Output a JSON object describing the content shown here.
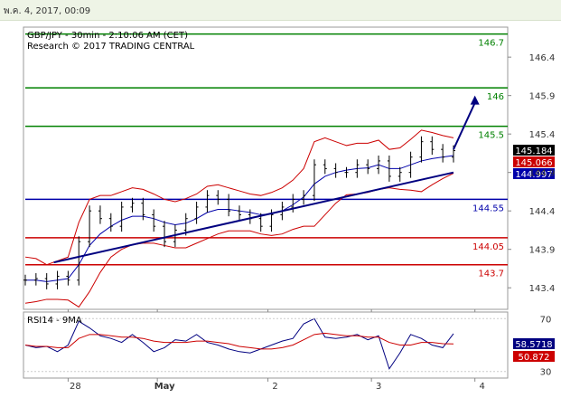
{
  "header": {
    "datetime": "พ.ค. 4, 2017, 00:09"
  },
  "chart_data": [
    {
      "type": "line",
      "title": "GBP/JPY - 30min - 2:10:06 AM (CET)",
      "subtitle": "Research © 2017 TRADING CENTRAL",
      "x_tick_labels": [
        "28",
        "May",
        "2",
        "3",
        "4"
      ],
      "y_tick_labels": [
        "146.4",
        "145.9",
        "145.4",
        "144.9",
        "144.4",
        "143.9",
        "143.4"
      ],
      "ylim": [
        143.12,
        146.79
      ],
      "levels": [
        {
          "value": 146.7,
          "label": "146.7",
          "color": "#008000"
        },
        {
          "value": 146.0,
          "label": "146",
          "color": "#008000"
        },
        {
          "value": 145.5,
          "label": "145.5",
          "color": "#008000"
        },
        {
          "value": 144.55,
          "label": "144.55",
          "color": "#0000aa"
        },
        {
          "value": 144.05,
          "label": "144.05",
          "color": "#cc0000"
        },
        {
          "value": 143.7,
          "label": "143.7",
          "color": "#cc0000"
        }
      ],
      "price_tags": [
        {
          "value": 145.184,
          "label": "145.184",
          "bg": "#000000",
          "fg": "#ffffff"
        },
        {
          "value": 145.066,
          "label": "145.066",
          "bg": "#cc0000",
          "fg": "#ffffff"
        },
        {
          "value": 144.997,
          "label": "144.997",
          "bg": "#0000aa",
          "fg": "#ffffff"
        }
      ],
      "price_series": {
        "name": "GBP/JPY",
        "x": [
          0,
          3,
          6,
          9,
          12,
          15,
          18,
          21,
          24,
          27,
          30,
          33,
          36,
          39,
          42,
          45,
          48,
          51,
          54,
          57,
          60,
          63,
          66,
          69,
          72,
          75,
          78,
          81,
          84,
          87,
          90,
          93,
          96,
          99,
          102,
          105,
          108,
          111,
          114,
          117,
          120
        ],
        "close": [
          143.5,
          143.52,
          143.45,
          143.55,
          143.5,
          144.0,
          144.4,
          144.3,
          144.2,
          144.45,
          144.5,
          144.35,
          144.2,
          144.0,
          144.15,
          144.3,
          144.45,
          144.6,
          144.55,
          144.4,
          144.35,
          144.3,
          144.2,
          144.35,
          144.45,
          144.55,
          144.6,
          145.0,
          144.95,
          144.9,
          144.9,
          145.0,
          144.95,
          145.05,
          144.85,
          144.9,
          145.1,
          145.3,
          145.2,
          145.1,
          145.184
        ]
      },
      "bollinger": {
        "upper": [
          143.8,
          143.78,
          143.7,
          143.75,
          143.8,
          144.25,
          144.55,
          144.6,
          144.6,
          144.65,
          144.7,
          144.68,
          144.62,
          144.55,
          144.52,
          144.56,
          144.62,
          144.72,
          144.74,
          144.7,
          144.66,
          144.62,
          144.6,
          144.64,
          144.7,
          144.8,
          144.95,
          145.3,
          145.35,
          145.3,
          145.25,
          145.28,
          145.28,
          145.32,
          145.2,
          145.22,
          145.33,
          145.45,
          145.42,
          145.38,
          145.35
        ],
        "middle": [
          143.5,
          143.5,
          143.48,
          143.5,
          143.52,
          143.7,
          143.95,
          144.1,
          144.2,
          144.28,
          144.33,
          144.33,
          144.3,
          144.25,
          144.22,
          144.24,
          144.3,
          144.38,
          144.42,
          144.42,
          144.4,
          144.38,
          144.35,
          144.36,
          144.4,
          144.48,
          144.58,
          144.75,
          144.85,
          144.9,
          144.93,
          144.95,
          144.96,
          145.0,
          144.95,
          144.95,
          145.0,
          145.05,
          145.08,
          145.1,
          145.12
        ],
        "lower": [
          143.2,
          143.22,
          143.25,
          143.25,
          143.24,
          143.15,
          143.35,
          143.6,
          143.8,
          143.9,
          143.96,
          143.98,
          143.98,
          143.95,
          143.92,
          143.92,
          143.98,
          144.04,
          144.1,
          144.14,
          144.14,
          144.14,
          144.1,
          144.08,
          144.1,
          144.16,
          144.2,
          144.2,
          144.35,
          144.5,
          144.61,
          144.62,
          144.64,
          144.68,
          144.7,
          144.68,
          144.67,
          144.65,
          144.74,
          144.82,
          144.89
        ]
      },
      "trendline": {
        "from": [
          8,
          143.73
        ],
        "to": [
          120,
          144.9
        ]
      },
      "projection": {
        "from": [
          120,
          145.2
        ],
        "to": [
          126,
          145.9
        ]
      }
    },
    {
      "type": "line",
      "title": "RSI14 - 9MA",
      "y_tick_labels": [
        "70",
        "30"
      ],
      "ylim": [
        25,
        75
      ],
      "series": [
        {
          "name": "RSI14",
          "color": "#000080",
          "x": [
            0,
            3,
            6,
            9,
            12,
            15,
            18,
            21,
            24,
            27,
            30,
            33,
            36,
            39,
            42,
            45,
            48,
            51,
            54,
            57,
            60,
            63,
            66,
            69,
            72,
            75,
            78,
            81,
            84,
            87,
            90,
            93,
            96,
            99,
            102,
            105,
            108,
            111,
            114,
            117,
            120
          ],
          "values": [
            50,
            48,
            49,
            45,
            50,
            68,
            63,
            57,
            55,
            52,
            58,
            52,
            45,
            48,
            54,
            53,
            58,
            52,
            50,
            47,
            45,
            44,
            47,
            50,
            53,
            55,
            66,
            70,
            56,
            55,
            56,
            58,
            54,
            57,
            32,
            44,
            58,
            55,
            50,
            48,
            58.57
          ]
        },
        {
          "name": "9MA",
          "color": "#cc0000",
          "x": [
            0,
            3,
            6,
            9,
            12,
            15,
            18,
            21,
            24,
            27,
            30,
            33,
            36,
            39,
            42,
            45,
            48,
            51,
            54,
            57,
            60,
            63,
            66,
            69,
            72,
            75,
            78,
            81,
            84,
            87,
            90,
            93,
            96,
            99,
            102,
            105,
            108,
            111,
            114,
            117,
            120
          ],
          "values": [
            50,
            49,
            49,
            48,
            48,
            55,
            58,
            58,
            57,
            56,
            56,
            55,
            53,
            52,
            52,
            52,
            53,
            53,
            52,
            51,
            49,
            48,
            47,
            47,
            48,
            50,
            54,
            58,
            59,
            58,
            57,
            57,
            56,
            56,
            52,
            50,
            50,
            52,
            52,
            51,
            50.87
          ]
        }
      ],
      "value_tags": [
        {
          "value": 58.5718,
          "label": "58.5718",
          "bg": "#000080",
          "fg": "#ffffff"
        },
        {
          "value": 50.872,
          "label": "50.872",
          "bg": "#cc0000",
          "fg": "#ffffff"
        }
      ]
    }
  ]
}
